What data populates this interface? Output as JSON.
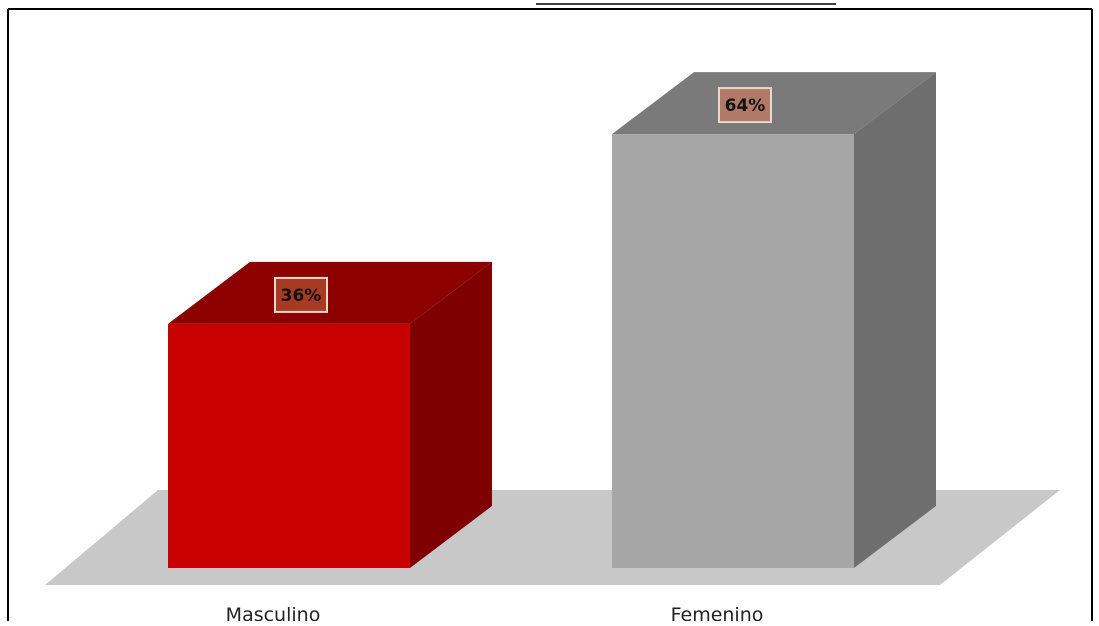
{
  "chart_data": {
    "type": "bar",
    "style": "3d-column",
    "categories": [
      "Masculino",
      "Femenino"
    ],
    "values": [
      36,
      64
    ],
    "value_labels": [
      "36%",
      "64%"
    ],
    "unit": "%",
    "ylim": [
      0,
      70
    ],
    "grid": false,
    "legend": "none",
    "colors": {
      "bars": [
        "#c80000",
        "#a6a6a6"
      ],
      "bar_tops": [
        "#8c0000",
        "#7a7a7a"
      ],
      "bar_sides": [
        "#7e0000",
        "#6e6e6e"
      ],
      "label_boxes": [
        "#a63a22",
        "#b07a66"
      ],
      "floor": "#c8c8c8"
    }
  }
}
